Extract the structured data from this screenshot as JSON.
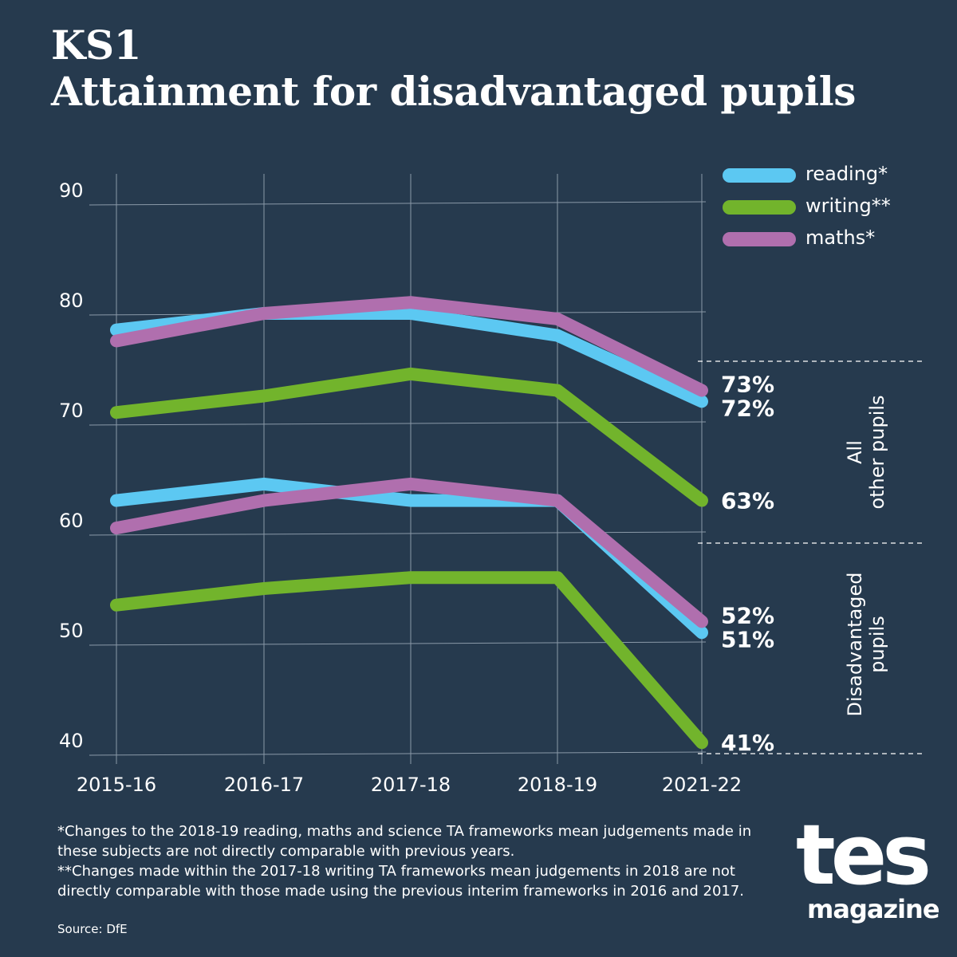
{
  "header": {
    "title_line1": "KS1",
    "title_line2": "Attainment for disadvantaged pupils"
  },
  "colors": {
    "background": "#263a4e",
    "reading": "#5cc8f2",
    "writing": "#72b42c",
    "maths": "#b06fae"
  },
  "legend": [
    {
      "name": "reading*",
      "color": "#5cc8f2"
    },
    {
      "name": "writing**",
      "color": "#72b42c"
    },
    {
      "name": "maths*",
      "color": "#b06fae"
    }
  ],
  "chart_data": {
    "type": "line",
    "categories": [
      "2015-16",
      "2016-17",
      "2017-18",
      "2018-19",
      "2021-22"
    ],
    "ylim": [
      40,
      90
    ],
    "y_ticks": [
      90,
      80,
      70,
      60,
      50,
      40
    ],
    "grid": true,
    "legend_position": "top-right",
    "groups": [
      {
        "label": "All other pupils",
        "series": [
          {
            "name": "reading*",
            "color": "#5cc8f2",
            "values": [
              78.5,
              80,
              80,
              78,
              72
            ],
            "end_label": "72%"
          },
          {
            "name": "writing**",
            "color": "#72b42c",
            "values": [
              71,
              72.5,
              74.5,
              73,
              63
            ],
            "end_label": "63%"
          },
          {
            "name": "maths*",
            "color": "#b06fae",
            "values": [
              77.5,
              80,
              81,
              79.5,
              73
            ],
            "end_label": "73%"
          }
        ]
      },
      {
        "label": "Disadvantaged pupils",
        "series": [
          {
            "name": "reading*",
            "color": "#5cc8f2",
            "values": [
              63,
              64.5,
              63,
              63,
              51
            ],
            "end_label": "51%"
          },
          {
            "name": "writing**",
            "color": "#72b42c",
            "values": [
              53.5,
              55,
              56,
              56,
              41
            ],
            "end_label": "41%"
          },
          {
            "name": "maths*",
            "color": "#b06fae",
            "values": [
              60.5,
              63,
              64.5,
              63,
              52
            ],
            "end_label": "52%"
          }
        ]
      }
    ]
  },
  "footnotes": {
    "note1": "*Changes to the 2018-19 reading, maths and science TA frameworks mean judgements made in these subjects are not directly comparable with previous years.",
    "note2": "**Changes made within the 2017-18 writing TA frameworks mean judgements in 2018 are not directly comparable with those made using the previous interim frameworks in 2016 and 2017."
  },
  "source": "Source: DfE",
  "logo": {
    "main": "tes",
    "sub": "magazine"
  }
}
